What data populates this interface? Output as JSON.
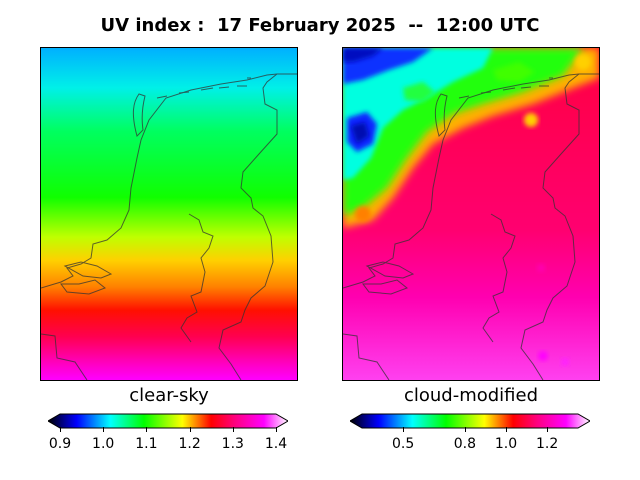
{
  "header": {
    "title": "UV index :  17 February 2025  --  12:00 UTC"
  },
  "panels": [
    {
      "id": "left",
      "title": "clear-sky",
      "colorbar": {
        "ticks": [
          "0.9",
          "1.0",
          "1.1",
          "1.2",
          "1.3",
          "1.4"
        ],
        "tick_values": [
          0.9,
          1.0,
          1.1,
          1.2,
          1.3,
          1.4
        ],
        "range": [
          0.9,
          1.4
        ]
      }
    },
    {
      "id": "right",
      "title": "cloud-modified",
      "colorbar": {
        "ticks": [
          "0.5",
          "0.8",
          "1.0",
          "1.2"
        ],
        "tick_values": [
          0.5,
          0.8,
          1.0,
          1.2
        ],
        "range": [
          0.3,
          1.35
        ]
      }
    }
  ],
  "colors": {
    "colormap": [
      "#000000",
      "#0000ff",
      "#00ffff",
      "#00ff00",
      "#ffff00",
      "#ff0000",
      "#ff0080",
      "#ff00ff",
      "#ffffff"
    ],
    "coastline": "#333333"
  }
}
